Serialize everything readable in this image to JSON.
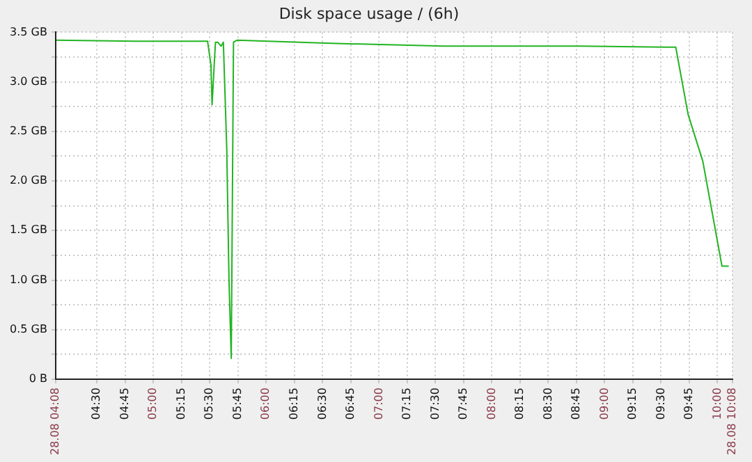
{
  "chart_data": {
    "type": "line",
    "title": "Disk space usage / (6h)",
    "x": [
      4.14,
      4.84,
      5.48,
      5.51,
      5.52,
      5.55,
      5.57,
      5.6,
      5.62,
      5.65,
      5.67,
      5.69,
      5.71,
      5.74,
      6.53,
      7.57,
      8.79,
      9.53,
      9.63,
      9.74,
      9.87,
      10.04,
      10.1
    ],
    "series": [
      {
        "color": "#22b422",
        "values": [
          3.42,
          3.41,
          3.41,
          3.17,
          2.77,
          3.4,
          3.4,
          3.36,
          3.4,
          2.33,
          1.0,
          0.21,
          3.4,
          3.42,
          3.39,
          3.36,
          3.36,
          3.35,
          3.35,
          2.67,
          2.2,
          1.14,
          1.14
        ]
      }
    ],
    "xlim": [
      4.1333,
      10.1333
    ],
    "xticks": [
      {
        "value": 4.1333,
        "label": "28.08 04:08"
      },
      {
        "value": 4.5,
        "label": "04:30"
      },
      {
        "value": 4.75,
        "label": "04:45"
      },
      {
        "value": 5,
        "label": "05:00"
      },
      {
        "value": 5.25,
        "label": "05:15"
      },
      {
        "value": 5.5,
        "label": "05:30"
      },
      {
        "value": 5.75,
        "label": "05:45"
      },
      {
        "value": 6,
        "label": "06:00"
      },
      {
        "value": 6.25,
        "label": "06:15"
      },
      {
        "value": 6.5,
        "label": "06:30"
      },
      {
        "value": 6.75,
        "label": "06:45"
      },
      {
        "value": 7,
        "label": "07:00"
      },
      {
        "value": 7.25,
        "label": "07:15"
      },
      {
        "value": 7.5,
        "label": "07:30"
      },
      {
        "value": 7.75,
        "label": "07:45"
      },
      {
        "value": 8,
        "label": "08:00"
      },
      {
        "value": 8.25,
        "label": "08:15"
      },
      {
        "value": 8.5,
        "label": "08:30"
      },
      {
        "value": 8.75,
        "label": "08:45"
      },
      {
        "value": 9,
        "label": "09:00"
      },
      {
        "value": 9.25,
        "label": "09:15"
      },
      {
        "value": 9.5,
        "label": "09:30"
      },
      {
        "value": 9.75,
        "label": "09:45"
      },
      {
        "value": 10,
        "label": "10:00"
      },
      {
        "value": 10.1333,
        "label": "28.08 10:08"
      }
    ],
    "ylim": [
      0,
      3.5
    ],
    "yticks": [
      {
        "value": 0,
        "label": "0 B"
      },
      {
        "value": 0.25,
        "label": null
      },
      {
        "value": 0.5,
        "label": "0.5 GB"
      },
      {
        "value": 0.75,
        "label": null
      },
      {
        "value": 1,
        "label": "1.0 GB"
      },
      {
        "value": 1.25,
        "label": null
      },
      {
        "value": 1.5,
        "label": "1.5 GB"
      },
      {
        "value": 1.75,
        "label": null
      },
      {
        "value": 2,
        "label": "2.0 GB"
      },
      {
        "value": 2.25,
        "label": null
      },
      {
        "value": 2.5,
        "label": "2.5 GB"
      },
      {
        "value": 2.75,
        "label": null
      },
      {
        "value": 3,
        "label": "3.0 GB"
      },
      {
        "value": 3.25,
        "label": null
      },
      {
        "value": 3.5,
        "label": "3.5 GB"
      }
    ],
    "grid": true,
    "legend": false,
    "marker": "none",
    "line_style": "solid"
  }
}
